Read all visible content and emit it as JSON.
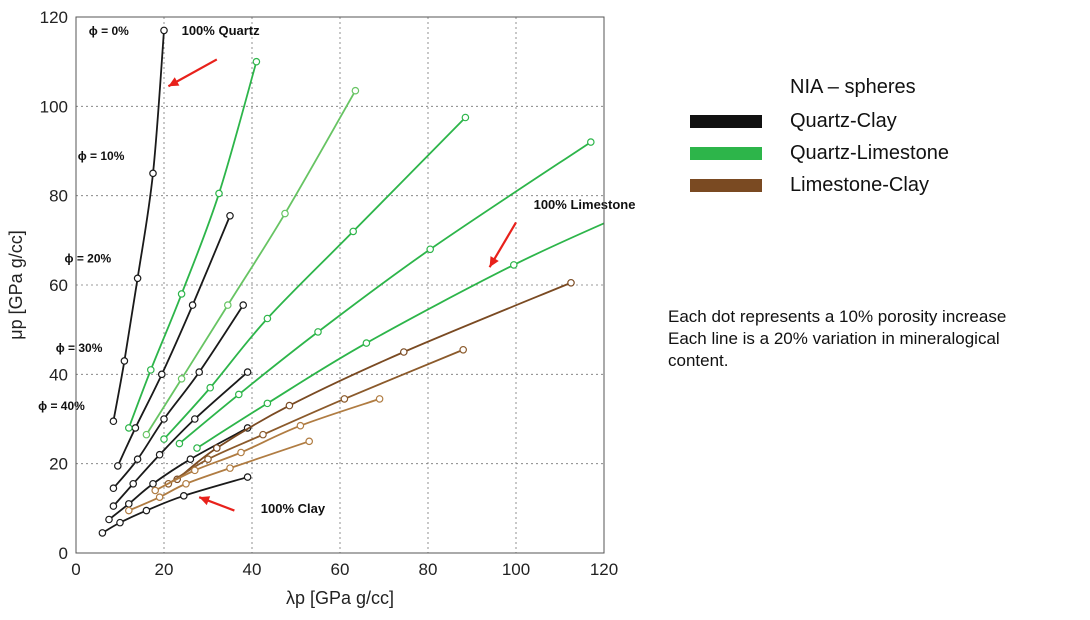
{
  "chart_data": {
    "type": "line",
    "xlabel": "λp [GPa g/cc]",
    "ylabel": "μp [GPa  g/cc]",
    "xlim": [
      0,
      120
    ],
    "ylim": [
      0,
      120
    ],
    "xticks": [
      "0",
      "20",
      "40",
      "60",
      "80",
      "100",
      "120"
    ],
    "yticks": [
      "0",
      "20",
      "40",
      "60",
      "80",
      "100",
      "120"
    ],
    "grid": true,
    "legend": {
      "title": "NIA – spheres",
      "placement": "right",
      "entries": [
        {
          "label": "Quartz-Clay",
          "color": "#111111"
        },
        {
          "label": "Quartz-Limestone",
          "color": "#2db54a"
        },
        {
          "label": "Limestone-Clay",
          "color": "#7a4a22"
        }
      ]
    },
    "note_lines": [
      "Each dot represents a 10% porosity increase",
      "Each line is a 20% variation in mineralogical",
      "content."
    ],
    "annotations": [
      {
        "text": "100% Quartz",
        "x": 24,
        "y": 116,
        "bold": true
      },
      {
        "text": "100% Limestone",
        "x": 104,
        "y": 77,
        "bold": true
      },
      {
        "text": "100% Clay",
        "x": 42,
        "y": 9,
        "bold": true
      },
      {
        "text": "ϕ = 0%",
        "x": 12,
        "y": 116
      },
      {
        "text": "ϕ = 10%",
        "x": 11,
        "y": 88
      },
      {
        "text": "ϕ = 20%",
        "x": 8,
        "y": 65
      },
      {
        "text": "ϕ = 30%",
        "x": 6,
        "y": 45
      },
      {
        "text": "ϕ = 40%",
        "x": 2,
        "y": 32
      }
    ],
    "arrows": [
      {
        "from": [
          32,
          110.5
        ],
        "to": [
          21,
          104.5
        ]
      },
      {
        "from": [
          100,
          74
        ],
        "to": [
          94,
          64
        ]
      },
      {
        "from": [
          36,
          9.5
        ],
        "to": [
          28,
          12.5
        ]
      }
    ],
    "series": [
      {
        "group": "Quartz-Clay",
        "color": "#1a1a1a",
        "points": [
          [
            8.5,
            29.5
          ],
          [
            11,
            43
          ],
          [
            14,
            61.5
          ],
          [
            17.5,
            85
          ],
          [
            20,
            117
          ]
        ]
      },
      {
        "group": "Quartz-Clay",
        "color": "#1a1a1a",
        "points": [
          [
            9.5,
            19.5
          ],
          [
            13.5,
            28
          ],
          [
            19.5,
            40
          ],
          [
            26.5,
            55.5
          ],
          [
            35,
            75.5
          ]
        ]
      },
      {
        "group": "Quartz-Clay",
        "color": "#1a1a1a",
        "points": [
          [
            8.5,
            14.5
          ],
          [
            14,
            21
          ],
          [
            20,
            30
          ],
          [
            28,
            40.5
          ],
          [
            38,
            55.5
          ]
        ]
      },
      {
        "group": "Quartz-Clay",
        "color": "#1a1a1a",
        "points": [
          [
            8.5,
            10.5
          ],
          [
            13,
            15.5
          ],
          [
            19,
            22
          ],
          [
            27,
            30
          ],
          [
            39,
            40.5
          ]
        ]
      },
      {
        "group": "Quartz-Clay",
        "color": "#1a1a1a",
        "points": [
          [
            7.5,
            7.5
          ],
          [
            12,
            11
          ],
          [
            17.5,
            15.5
          ],
          [
            26,
            21
          ],
          [
            39,
            28
          ]
        ]
      },
      {
        "group": "Quartz-Clay",
        "color": "#1a1a1a",
        "points": [
          [
            6,
            4.5
          ],
          [
            10,
            6.8
          ],
          [
            16,
            9.5
          ],
          [
            24.5,
            12.8
          ],
          [
            39,
            17
          ]
        ]
      },
      {
        "group": "Quartz-Limestone",
        "color": "#2db54a",
        "points": [
          [
            12,
            28
          ],
          [
            17,
            41
          ],
          [
            24,
            58
          ],
          [
            32.5,
            80.5
          ],
          [
            41,
            110
          ]
        ]
      },
      {
        "group": "Quartz-Limestone",
        "color": "#67c463",
        "points": [
          [
            16,
            26.5
          ],
          [
            24,
            39
          ],
          [
            34.5,
            55.5
          ],
          [
            47.5,
            76
          ],
          [
            63.5,
            103.5
          ]
        ]
      },
      {
        "group": "Quartz-Limestone",
        "color": "#2db54a",
        "points": [
          [
            20,
            25.5
          ],
          [
            30.5,
            37
          ],
          [
            43.5,
            52.5
          ],
          [
            63,
            72
          ],
          [
            88.5,
            97.5
          ]
        ]
      },
      {
        "group": "Quartz-Limestone",
        "color": "#2db54a",
        "points": [
          [
            23.5,
            24.5
          ],
          [
            37,
            35.5
          ],
          [
            55,
            49.5
          ],
          [
            80.5,
            68
          ],
          [
            117,
            92
          ]
        ]
      },
      {
        "group": "Quartz-Limestone",
        "color": "#2db54a",
        "points": [
          [
            27.5,
            23.5
          ],
          [
            43.5,
            33.5
          ],
          [
            66,
            47
          ],
          [
            99.5,
            64.5
          ],
          [
            125,
            76
          ]
        ]
      },
      {
        "group": "Limestone-Clay",
        "color": "#7a4a22",
        "points": [
          [
            23,
            16.5
          ],
          [
            32,
            23.5
          ],
          [
            48.5,
            33
          ],
          [
            74.5,
            45
          ],
          [
            112.5,
            60.5
          ]
        ]
      },
      {
        "group": "Limestone-Clay",
        "color": "#8b5a2b",
        "points": [
          [
            21,
            15.5
          ],
          [
            30,
            21
          ],
          [
            42.5,
            26.5
          ],
          [
            61,
            34.5
          ],
          [
            88,
            45.5
          ]
        ]
      },
      {
        "group": "Limestone-Clay",
        "color": "#b07c42",
        "points": [
          [
            18,
            14
          ],
          [
            27,
            18.5
          ],
          [
            37.5,
            22.5
          ],
          [
            51,
            28.5
          ],
          [
            69,
            34.5
          ]
        ]
      },
      {
        "group": "Limestone-Clay",
        "color": "#b07c42",
        "points": [
          [
            12,
            9.5
          ],
          [
            19,
            12.5
          ],
          [
            25,
            15.5
          ],
          [
            35,
            19
          ],
          [
            53,
            25
          ]
        ]
      }
    ]
  }
}
